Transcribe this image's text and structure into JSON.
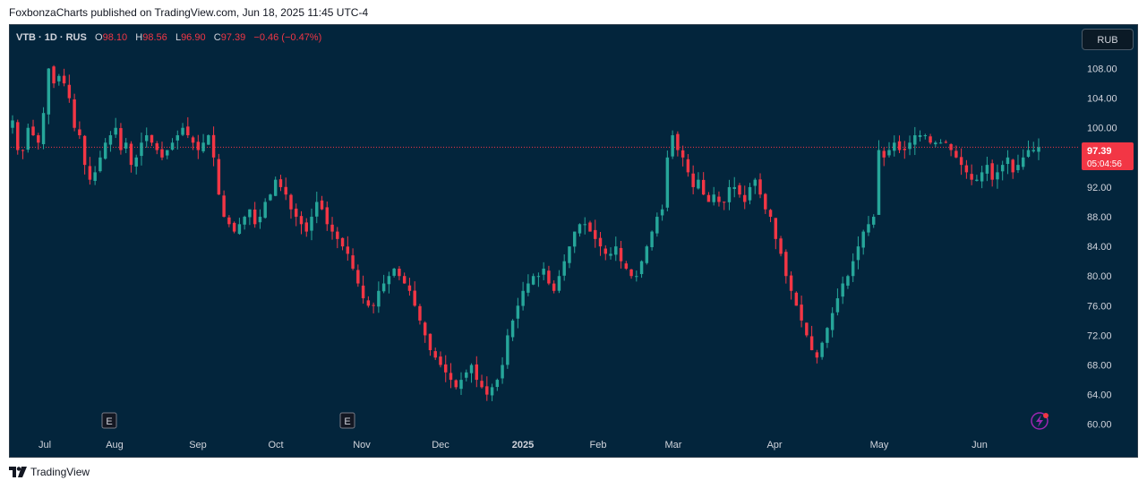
{
  "header": {
    "text": "FoxbonzaCharts published on TradingView.com, Jun 18, 2025 11:45 UTC-4"
  },
  "legend": {
    "symbol": "VTB · 1D · RUS",
    "open_label": "O",
    "open": "98.10",
    "high_label": "H",
    "high": "98.56",
    "low_label": "L",
    "low": "96.90",
    "close_label": "C",
    "close": "97.39",
    "change": "−0.46 (−0.47%)"
  },
  "currency_button": "RUB",
  "price_tag": {
    "price": "97.39",
    "countdown": "05:04:56"
  },
  "footer": {
    "brand": "TradingView"
  },
  "earnings_marker": "E",
  "colors": {
    "up": "#26a69a",
    "down": "#f23645",
    "background": "#03253c",
    "axis_text": "#d1d4dc"
  },
  "chart_data": {
    "type": "candlestick",
    "title": "VTB · 1D · RUS",
    "ylabel": "RUB",
    "ylim": [
      59,
      110
    ],
    "y_ticks": [
      "60.00",
      "64.00",
      "68.00",
      "72.00",
      "76.00",
      "80.00",
      "84.00",
      "88.00",
      "92.00",
      "96.00",
      "100.00",
      "104.00",
      "108.00"
    ],
    "x_ticks": [
      "Jul",
      "Aug",
      "Sep",
      "Oct",
      "Nov",
      "Dec",
      "2025",
      "Feb",
      "Mar",
      "Apr",
      "May",
      "Jun"
    ],
    "current_price": 97.39,
    "earnings_months": [
      "Aug",
      "Nov"
    ],
    "closes": [
      101,
      97,
      97,
      100,
      99,
      98,
      102,
      108,
      106,
      107,
      106,
      104,
      100,
      99,
      95,
      93,
      94,
      96,
      98,
      99,
      100,
      97,
      98,
      95,
      96,
      98,
      99,
      98,
      97,
      96,
      97,
      98,
      99,
      100,
      99,
      98,
      97,
      98,
      99,
      96,
      91,
      88,
      87,
      86,
      87,
      88,
      89,
      87,
      88,
      90,
      91,
      93,
      92,
      91,
      89,
      88,
      87,
      86,
      88,
      90,
      89,
      87,
      86,
      85,
      84,
      83,
      81,
      79,
      77,
      76,
      76,
      78,
      79,
      80,
      81,
      80,
      79,
      78,
      76,
      74,
      72,
      70,
      69,
      68,
      67,
      66,
      65,
      66,
      67,
      68,
      66,
      65,
      64,
      65,
      66,
      68,
      72,
      74,
      76,
      78,
      79,
      80,
      80,
      81,
      79,
      78,
      80,
      82,
      84,
      86,
      87,
      87,
      86,
      85,
      84,
      83,
      83,
      84,
      82,
      81,
      80,
      80,
      82,
      84,
      86,
      88,
      89,
      96,
      99,
      97,
      96,
      94,
      92,
      93,
      91,
      90,
      91,
      90,
      90,
      92,
      92,
      91,
      90,
      92,
      93,
      91,
      89,
      88,
      85,
      83,
      80,
      78,
      76,
      74,
      72,
      70,
      69,
      71,
      73,
      75,
      77,
      79,
      80,
      82,
      84,
      86,
      87,
      88,
      97,
      96,
      97,
      98,
      97,
      97,
      98,
      99,
      99,
      99,
      98,
      98,
      98,
      98,
      97,
      96,
      95,
      94,
      93,
      93,
      94,
      95,
      93,
      94,
      95,
      96,
      94,
      95,
      96,
      97,
      97,
      97.39
    ]
  }
}
